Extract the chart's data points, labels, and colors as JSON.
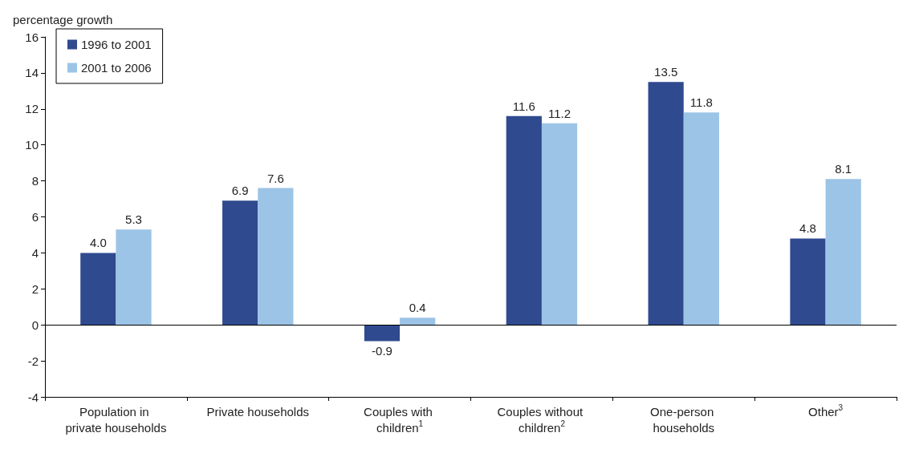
{
  "chart_data": {
    "type": "bar",
    "ylabel": "percentage growth",
    "categories": [
      "Population in private households",
      "Private households",
      "Couples with children$^{1}$",
      "Couples without children$^{2}$",
      "One-person households",
      "Other$^{3}$"
    ],
    "series": [
      {
        "name": "1996 to 2001",
        "color": "#2f4a8f",
        "values": [
          4.0,
          6.9,
          -0.9,
          11.6,
          13.5,
          4.8
        ],
        "value_labels": [
          "4.0",
          "6.9",
          "-0.9",
          "11.6",
          "13.5",
          "4.8"
        ]
      },
      {
        "name": "2001 to 2006",
        "color": "#9cc4e6",
        "values": [
          5.3,
          7.6,
          0.4,
          11.2,
          11.8,
          8.1
        ],
        "value_labels": [
          "5.3",
          "7.6",
          "0.4",
          "11.2",
          "11.8",
          "8.1"
        ]
      }
    ],
    "ylim": [
      -4,
      16
    ],
    "yticks": [
      -4,
      -2,
      0,
      2,
      4,
      6,
      8,
      10,
      12,
      14,
      16
    ],
    "ref_lines": [
      {
        "axis": "y",
        "value": 0,
        "color": "#000000"
      }
    ],
    "grid": false,
    "legend": "top left"
  }
}
